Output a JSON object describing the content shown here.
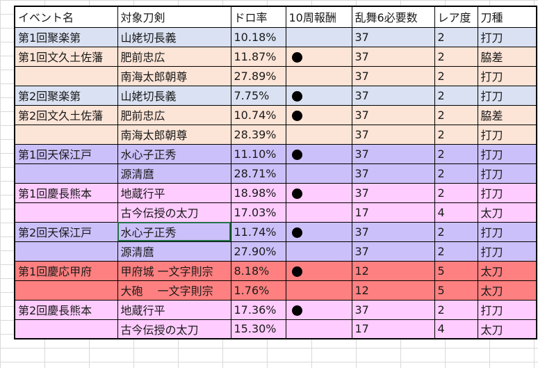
{
  "headers": [
    "イベント名",
    "対象刀剣",
    "ドロ率",
    "10周報酬",
    "乱舞6必要数",
    "レア度",
    "刀種"
  ],
  "colors": {
    "blue": "#d9e1f2",
    "peach": "#fce4d6",
    "purple": "#ccc0fa",
    "pink": "#ffccff",
    "red": "#ff8080"
  },
  "rows": [
    {
      "event": "第1回聚楽第",
      "sword": "山姥切長義",
      "rate": "10.18%",
      "reward": false,
      "ranbu": "37",
      "rarity": "2",
      "type": "打刀",
      "color": "#d9e1f2"
    },
    {
      "event": "第1回文久土佐藩",
      "sword": "肥前忠広",
      "rate": "11.87%",
      "reward": true,
      "ranbu": "37",
      "rarity": "2",
      "type": "脇差",
      "color": "#fce4d6"
    },
    {
      "event": "",
      "sword": "南海太郎朝尊",
      "rate": "27.89%",
      "reward": false,
      "ranbu": "37",
      "rarity": "2",
      "type": "打刀",
      "color": "#fce4d6"
    },
    {
      "event": "第2回聚楽第",
      "sword": "山姥切長義",
      "rate": "7.75%",
      "reward": true,
      "ranbu": "37",
      "rarity": "2",
      "type": "打刀",
      "color": "#d9e1f2"
    },
    {
      "event": "第2回文久土佐藩",
      "sword": "肥前忠広",
      "rate": "10.74%",
      "reward": true,
      "ranbu": "37",
      "rarity": "2",
      "type": "脇差",
      "color": "#fce4d6"
    },
    {
      "event": "",
      "sword": "南海太郎朝尊",
      "rate": "28.39%",
      "reward": false,
      "ranbu": "37",
      "rarity": "2",
      "type": "打刀",
      "color": "#fce4d6"
    },
    {
      "event": "第1回天保江戸",
      "sword": "水心子正秀",
      "rate": "11.10%",
      "reward": true,
      "ranbu": "37",
      "rarity": "2",
      "type": "打刀",
      "color": "#ccc0fa"
    },
    {
      "event": "",
      "sword": "源清麿",
      "rate": "28.71%",
      "reward": false,
      "ranbu": "37",
      "rarity": "2",
      "type": "打刀",
      "color": "#ccc0fa"
    },
    {
      "event": "第1回慶長熊本",
      "sword": "地蔵行平",
      "rate": "18.98%",
      "reward": true,
      "ranbu": "37",
      "rarity": "2",
      "type": "打刀",
      "color": "#ffccff"
    },
    {
      "event": "",
      "sword": "古今伝授の太刀",
      "rate": "17.03%",
      "reward": false,
      "ranbu": "17",
      "rarity": "4",
      "type": "太刀",
      "color": "#ffccff"
    },
    {
      "event": "第2回天保江戸",
      "sword": "水心子正秀",
      "rate": "11.74%",
      "reward": true,
      "ranbu": "37",
      "rarity": "2",
      "type": "打刀",
      "color": "#ccc0fa",
      "selected": true
    },
    {
      "event": "",
      "sword": "源清麿",
      "rate": "27.90%",
      "reward": false,
      "ranbu": "37",
      "rarity": "2",
      "type": "打刀",
      "color": "#ccc0fa"
    },
    {
      "event": "第1回慶応甲府",
      "sword": "甲府城 一文字則宗",
      "rate": "8.18%",
      "reward": true,
      "ranbu": "12",
      "rarity": "5",
      "type": "太刀",
      "color": "#ff8080"
    },
    {
      "event": "",
      "sword": "大砲　 一文字則宗",
      "rate": "1.76%",
      "reward": false,
      "ranbu": "12",
      "rarity": "5",
      "type": "太刀",
      "color": "#ff8080"
    },
    {
      "event": "第2回慶長熊本",
      "sword": "地蔵行平",
      "rate": "17.36%",
      "reward": true,
      "ranbu": "37",
      "rarity": "2",
      "type": "打刀",
      "color": "#ffccff"
    },
    {
      "event": "",
      "sword": "古今伝授の太刀",
      "rate": "15.30%",
      "reward": false,
      "ranbu": "17",
      "rarity": "4",
      "type": "太刀",
      "color": "#ffccff"
    }
  ]
}
